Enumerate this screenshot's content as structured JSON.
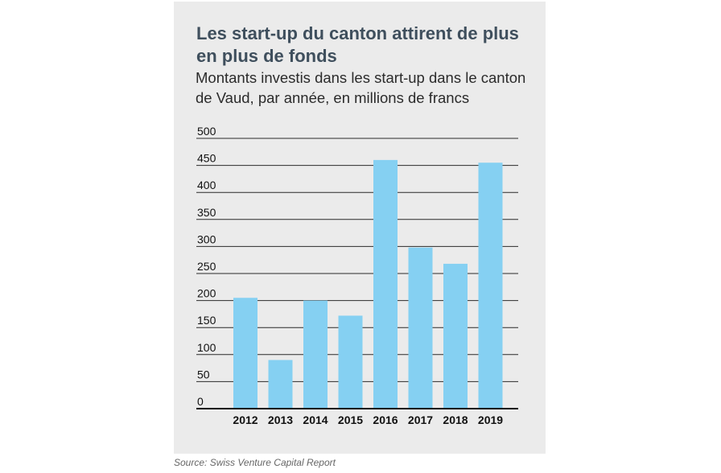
{
  "title": "Les start-up du canton attirent de plus en plus de fonds",
  "subtitle": "Montants investis dans les start-up dans le canton de Vaud, par année, en millions de francs",
  "source": "Source: Swiss Venture Capital Report",
  "colors": {
    "bar": "#85d0f2",
    "background": "#ebebeb",
    "gridline": "#2b2b2b",
    "title": "#3f4f5d"
  },
  "chart_data": {
    "type": "bar",
    "title": "Les start-up du canton attirent de plus en plus de fonds",
    "subtitle": "Montants investis dans les start-up dans le canton de Vaud, par année, en millions de francs",
    "xlabel": "",
    "ylabel": "",
    "categories": [
      "2012",
      "2013",
      "2014",
      "2015",
      "2016",
      "2017",
      "2018",
      "2019"
    ],
    "values": [
      205,
      90,
      200,
      172,
      460,
      298,
      268,
      455
    ],
    "ylim": [
      0,
      500
    ],
    "yticks": [
      0,
      50,
      100,
      150,
      200,
      250,
      300,
      350,
      400,
      450,
      500
    ],
    "grid": true,
    "legend": "none"
  }
}
